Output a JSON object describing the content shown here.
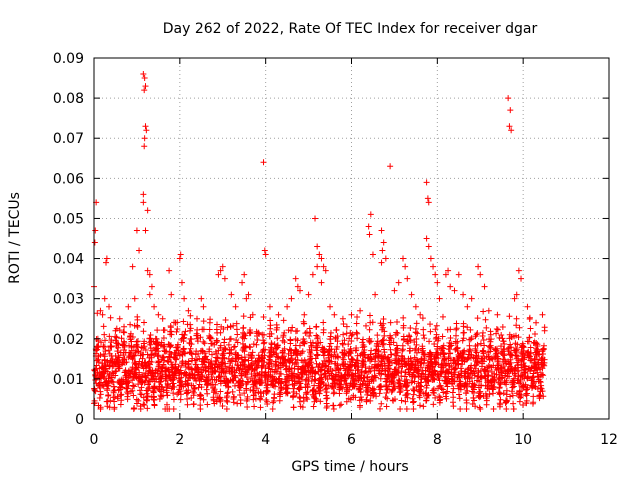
{
  "chart_data": {
    "type": "scatter",
    "title": "Day 262 of 2022, Rate Of TEC Index for receiver dgar",
    "xlabel": "GPS time / hours",
    "ylabel": "ROTI / TECUs",
    "xlim": [
      0,
      12
    ],
    "ylim": [
      0,
      0.09
    ],
    "xticks": [
      0,
      2,
      4,
      6,
      8,
      10,
      12
    ],
    "xtick_labels": [
      "0",
      "2",
      "4",
      "6",
      "8",
      "10",
      "12"
    ],
    "yticks": [
      0,
      0.01,
      0.02,
      0.03,
      0.04,
      0.05,
      0.06,
      0.07,
      0.08,
      0.09
    ],
    "ytick_labels": [
      "0",
      "0.01",
      "0.02",
      "0.03",
      "0.04",
      "0.05",
      "0.06",
      "0.07",
      "0.08",
      "0.09"
    ],
    "grid": true,
    "marker": "+",
    "series": [
      {
        "name": "ROTI",
        "color": "#ff0000",
        "points": [
          [
            0.02,
            0.044
          ],
          [
            0.05,
            0.054
          ],
          [
            0.03,
            0.047
          ],
          [
            0.0,
            0.033
          ],
          [
            0.15,
            0.027
          ],
          [
            0.2,
            0.026
          ],
          [
            0.28,
            0.039
          ],
          [
            0.3,
            0.04
          ],
          [
            0.25,
            0.03
          ],
          [
            0.35,
            0.028
          ],
          [
            0.5,
            0.022
          ],
          [
            0.6,
            0.025
          ],
          [
            0.7,
            0.023
          ],
          [
            0.8,
            0.028
          ],
          [
            0.95,
            0.03
          ],
          [
            1.0,
            0.047
          ],
          [
            1.05,
            0.042
          ],
          [
            0.9,
            0.038
          ],
          [
            1.15,
            0.086
          ],
          [
            1.18,
            0.085
          ],
          [
            1.2,
            0.083
          ],
          [
            1.17,
            0.082
          ],
          [
            1.2,
            0.073
          ],
          [
            1.22,
            0.072
          ],
          [
            1.18,
            0.07
          ],
          [
            1.17,
            0.068
          ],
          [
            1.15,
            0.056
          ],
          [
            1.15,
            0.054
          ],
          [
            1.25,
            0.052
          ],
          [
            1.2,
            0.047
          ],
          [
            1.25,
            0.037
          ],
          [
            1.3,
            0.036
          ],
          [
            1.35,
            0.033
          ],
          [
            1.3,
            0.031
          ],
          [
            1.4,
            0.028
          ],
          [
            1.5,
            0.026
          ],
          [
            1.6,
            0.025
          ],
          [
            1.75,
            0.037
          ],
          [
            1.8,
            0.031
          ],
          [
            1.9,
            0.024
          ],
          [
            2.0,
            0.04
          ],
          [
            2.02,
            0.041
          ],
          [
            2.05,
            0.034
          ],
          [
            2.1,
            0.03
          ],
          [
            2.2,
            0.027
          ],
          [
            2.4,
            0.025
          ],
          [
            2.5,
            0.03
          ],
          [
            2.55,
            0.028
          ],
          [
            2.7,
            0.024
          ],
          [
            2.9,
            0.036
          ],
          [
            2.95,
            0.037
          ],
          [
            3.0,
            0.038
          ],
          [
            3.05,
            0.035
          ],
          [
            3.2,
            0.031
          ],
          [
            3.3,
            0.028
          ],
          [
            3.45,
            0.034
          ],
          [
            3.5,
            0.036
          ],
          [
            3.55,
            0.03
          ],
          [
            3.6,
            0.031
          ],
          [
            3.7,
            0.026
          ],
          [
            3.95,
            0.064
          ],
          [
            3.98,
            0.042
          ],
          [
            4.0,
            0.041
          ],
          [
            4.1,
            0.028
          ],
          [
            4.3,
            0.026
          ],
          [
            4.5,
            0.028
          ],
          [
            4.6,
            0.03
          ],
          [
            4.7,
            0.035
          ],
          [
            4.75,
            0.033
          ],
          [
            4.8,
            0.032
          ],
          [
            4.9,
            0.026
          ],
          [
            5.0,
            0.031
          ],
          [
            5.1,
            0.036
          ],
          [
            5.15,
            0.05
          ],
          [
            5.2,
            0.043
          ],
          [
            5.25,
            0.041
          ],
          [
            5.3,
            0.04
          ],
          [
            5.2,
            0.038
          ],
          [
            5.35,
            0.038
          ],
          [
            5.4,
            0.037
          ],
          [
            5.3,
            0.034
          ],
          [
            5.5,
            0.028
          ],
          [
            5.6,
            0.026
          ],
          [
            5.8,
            0.025
          ],
          [
            6.0,
            0.026
          ],
          [
            6.2,
            0.027
          ],
          [
            6.4,
            0.048
          ],
          [
            6.45,
            0.051
          ],
          [
            6.42,
            0.046
          ],
          [
            6.5,
            0.041
          ],
          [
            6.55,
            0.031
          ],
          [
            6.7,
            0.047
          ],
          [
            6.75,
            0.044
          ],
          [
            6.72,
            0.042
          ],
          [
            6.8,
            0.04
          ],
          [
            6.7,
            0.039
          ],
          [
            6.9,
            0.063
          ],
          [
            7.0,
            0.032
          ],
          [
            7.1,
            0.034
          ],
          [
            7.2,
            0.04
          ],
          [
            7.25,
            0.038
          ],
          [
            7.3,
            0.035
          ],
          [
            7.4,
            0.031
          ],
          [
            7.5,
            0.028
          ],
          [
            7.6,
            0.026
          ],
          [
            7.75,
            0.059
          ],
          [
            7.78,
            0.055
          ],
          [
            7.8,
            0.054
          ],
          [
            7.75,
            0.045
          ],
          [
            7.8,
            0.043
          ],
          [
            7.85,
            0.04
          ],
          [
            7.9,
            0.038
          ],
          [
            7.95,
            0.036
          ],
          [
            8.0,
            0.034
          ],
          [
            8.05,
            0.03
          ],
          [
            8.2,
            0.036
          ],
          [
            8.25,
            0.037
          ],
          [
            8.3,
            0.033
          ],
          [
            8.4,
            0.032
          ],
          [
            8.5,
            0.036
          ],
          [
            8.6,
            0.031
          ],
          [
            8.7,
            0.028
          ],
          [
            8.8,
            0.03
          ],
          [
            8.95,
            0.038
          ],
          [
            9.0,
            0.036
          ],
          [
            9.1,
            0.033
          ],
          [
            9.2,
            0.027
          ],
          [
            9.4,
            0.026
          ],
          [
            9.65,
            0.08
          ],
          [
            9.7,
            0.077
          ],
          [
            9.68,
            0.073
          ],
          [
            9.72,
            0.072
          ],
          [
            9.8,
            0.03
          ],
          [
            9.85,
            0.031
          ],
          [
            9.9,
            0.037
          ],
          [
            9.95,
            0.035
          ],
          [
            10.1,
            0.028
          ],
          [
            10.3,
            0.024
          ],
          [
            10.45,
            0.026
          ],
          [
            10.5,
            0.022
          ]
        ],
        "band": {
          "x_range": [
            0,
            10.5
          ],
          "y_low_range": [
            0.002,
            0.009
          ],
          "y_high_range": [
            0.014,
            0.026
          ],
          "oscillation_period_hours": 0.155
        }
      }
    ]
  }
}
